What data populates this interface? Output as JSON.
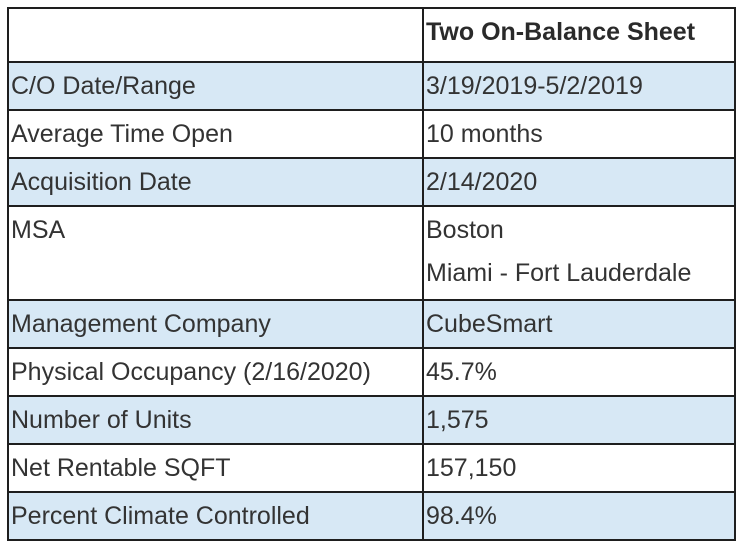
{
  "table": {
    "header": {
      "col1": "",
      "col2": "Two On-Balance Sheet"
    },
    "rows": [
      {
        "label": "C/O Date/Range",
        "value": "3/19/2019-5/2/2019"
      },
      {
        "label": "Average Time Open",
        "value": "10 months"
      },
      {
        "label": "Acquisition Date",
        "value": "2/14/2020"
      },
      {
        "label": "MSA",
        "values": [
          "Boston",
          "Miami - Fort Lauderdale"
        ]
      },
      {
        "label": "Management Company",
        "value": "CubeSmart"
      },
      {
        "label": "Physical Occupancy (2/16/2020)",
        "value": "45.7%"
      },
      {
        "label": "Number of Units",
        "value": "1,575"
      },
      {
        "label": "Net Rentable SQFT",
        "value": "157,150"
      },
      {
        "label": "Percent Climate Controlled",
        "value": "98.4%"
      }
    ]
  },
  "colors": {
    "shaded_row": "#d7e8f5",
    "border": "#1e1e1e",
    "text": "#333333"
  }
}
